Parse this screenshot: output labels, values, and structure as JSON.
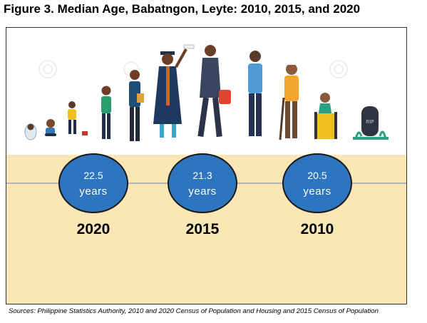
{
  "title": "Figure 3. Median Age, Babatngon, Leyte: 2010, 2015, and 2020",
  "source": "Sources: Philippine Statistics Authority, 2010 and 2020 Census of Population and Housing and 2015 Census of Population",
  "illustration": {
    "description_icon": "life-stages-illustration",
    "tombstone_text": "RIP"
  },
  "chart_data": {
    "type": "table",
    "categories": [
      "2020",
      "2015",
      "2010"
    ],
    "values": [
      22.5,
      21.3,
      20.5
    ],
    "value_labels": [
      "22.5",
      "21.3",
      "20.5"
    ],
    "unit_label": "years"
  },
  "colors": {
    "bubble_fill": "#2e75c0",
    "bubble_stroke": "#1a1a1a",
    "band": "#fbe6b5",
    "timeline": "#b5b5b5"
  }
}
